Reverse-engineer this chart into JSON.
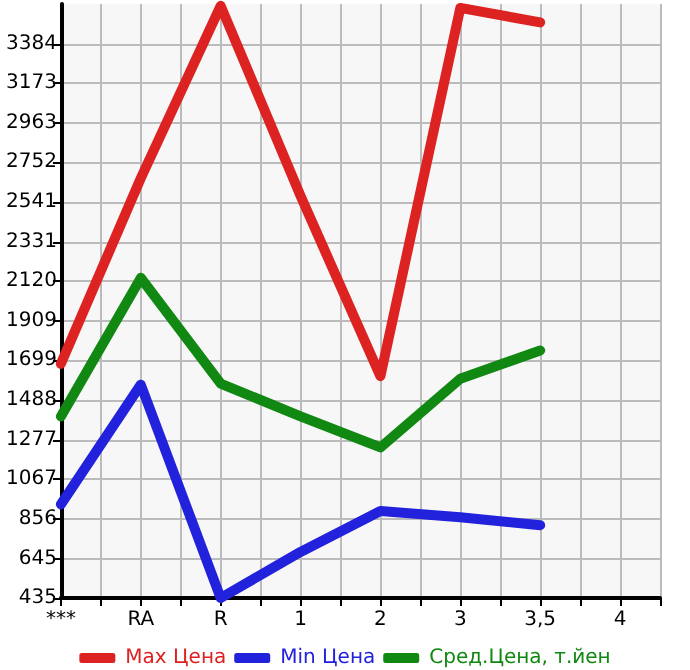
{
  "chart_data": {
    "type": "line",
    "categories": [
      "***",
      "RA",
      "R",
      "1",
      "2",
      "3",
      "3,5",
      "4"
    ],
    "series": [
      {
        "name": "Max Цена",
        "color": "#dd2222",
        "values": [
          1681,
          2668,
          3585,
          2574,
          1615,
          3574,
          3497,
          null
        ]
      },
      {
        "name": "Min Цена",
        "color": "#2222dd",
        "values": [
          933,
          1570,
          435,
          680,
          898,
          864,
          822,
          null
        ]
      },
      {
        "name": "Сред.Цена, т.йен",
        "color": "#118811",
        "values": [
          1401,
          2138,
          1576,
          1401,
          1236,
          1601,
          1752,
          null
        ]
      }
    ],
    "ylim": [
      435,
      3595
    ],
    "yticks": [
      435,
      645,
      856,
      1067,
      1277,
      1488,
      1699,
      1909,
      2120,
      2331,
      2541,
      2752,
      2963,
      3173,
      3384
    ],
    "grid": true,
    "legend": "bottom",
    "marker": "none",
    "line_style": "solid"
  }
}
